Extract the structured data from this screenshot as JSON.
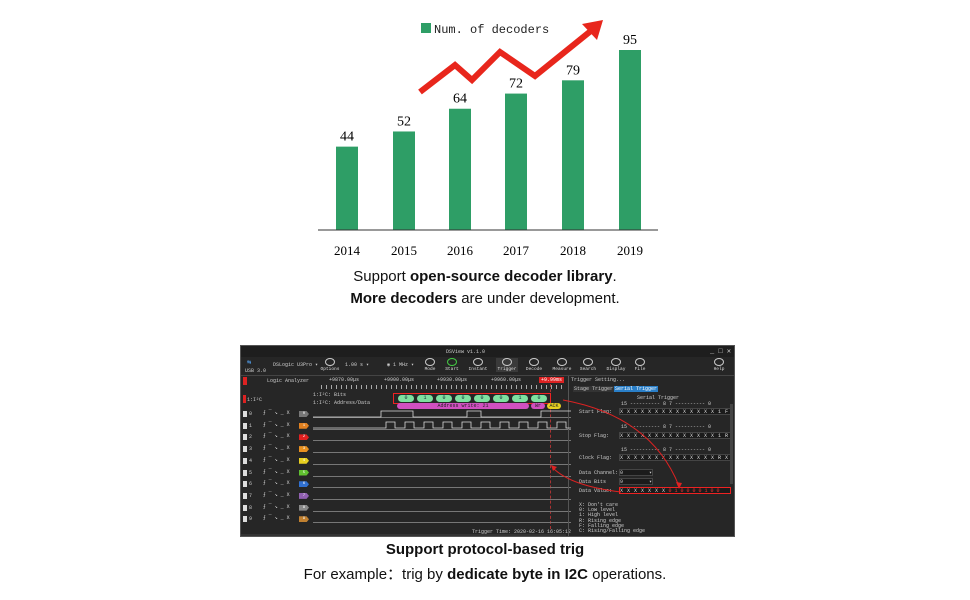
{
  "chart_data": {
    "type": "bar",
    "categories": [
      "2014",
      "2015",
      "2016",
      "2017",
      "2018",
      "2019"
    ],
    "series": [
      {
        "name": "Num. of decoders",
        "values": [
          44,
          52,
          64,
          72,
          79,
          95
        ]
      }
    ],
    "ylim": [
      0,
      100
    ],
    "grid": false,
    "legend": "top",
    "bar_color": "#2e9e66",
    "arrow_color": "#e8261c"
  },
  "captions": {
    "chart_line1_pre": "Support ",
    "chart_line1_bold": "open-source decoder library",
    "chart_line1_post": ".",
    "chart_line2_bold": "More decoders",
    "chart_line2_post": " are under development.",
    "shot_line1": "Support protocol-based trig",
    "shot_line2_pre": "For example：trig by ",
    "shot_line2_bold": "dedicate byte in I2C",
    "shot_line2_post": " operations."
  },
  "app": {
    "title": "DSView v1.1.0",
    "usb": "USB 3.0",
    "device": "DSLogic U3Pro",
    "depth": "1.00 s",
    "rate": "1 MHz",
    "toolbar": [
      "Options",
      "Mode",
      "Start",
      "Instant",
      "Trigger",
      "Decode",
      "Measure",
      "Search",
      "Display",
      "File",
      "Help"
    ],
    "mode_label": "Logic Analyzer",
    "time_ticks": [
      "+9870.00μs",
      "+9900.00μs",
      "+9930.00μs",
      "+9960.00μs"
    ],
    "cursor_label": "+9.99ms",
    "i2c_channel": "1:I²C",
    "decoder_rows": [
      "1:I²C: Bits",
      "1:I²C: Address/Data"
    ],
    "bits": [
      "0",
      "1",
      "0",
      "0",
      "0",
      "0",
      "1",
      "0"
    ],
    "address": "Address write: 21",
    "wr": "Wr",
    "ack": "ACK",
    "channels": [
      "0",
      "1",
      "2",
      "3",
      "4",
      "5",
      "6",
      "7",
      "8",
      "9"
    ],
    "channel_colors": [
      "#777",
      "#e08020",
      "#e02020",
      "#e89020",
      "#e8d020",
      "#60c030",
      "#3070d0",
      "#9060b0",
      "#888",
      "#c08030"
    ],
    "trigger_time": "Trigger Time: 2020-02-16 16:05:12",
    "panel": {
      "title": "Trigger Setting...",
      "tabs": [
        "Stage Trigger",
        "Serial Trigger"
      ],
      "heading": "Serial Trigger",
      "bit_header": "15 ---------- 8 7 ---------- 0",
      "start_flag_label": "Start Flag:",
      "start_flag": "X X X X X X X X X X X X X X 1 F",
      "stop_flag_label": "Stop Flag:",
      "stop_flag": "X X X X X X X X X X X X X X 1 R",
      "clock_flag_label": "Clock Flag:",
      "clock_flag": "X X X X X X X X X X X X X X R X",
      "data_channel_label": "Data Channel:",
      "data_channel": "0",
      "data_bits_label": "Data Bits",
      "data_bits": "9",
      "data_value_label": "Data Value:",
      "data_value_x": "X X X X X X X",
      "data_value_bits": "0 1 0 0 0 0 1 0 0",
      "legend": [
        "X: Don't care",
        "0: Low level",
        "1: High level",
        "R: Rising edge",
        "F: Falling edge",
        "C: Rising/Falling edge"
      ]
    }
  }
}
